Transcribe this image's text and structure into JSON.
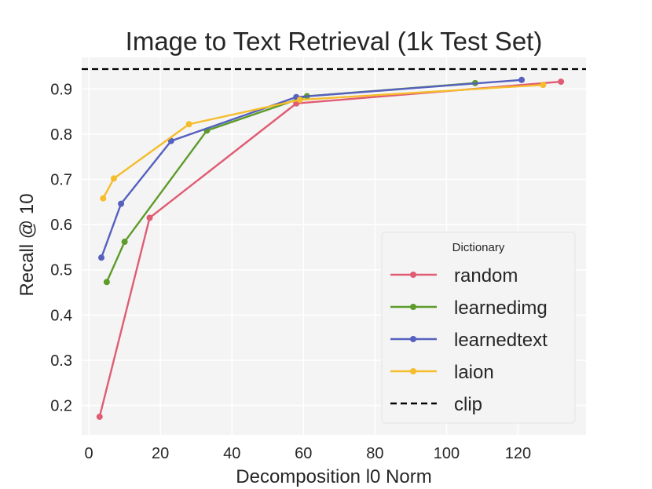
{
  "chart_data": {
    "type": "line",
    "title": "Image to Text Retrieval (1k Test Set)",
    "xlabel": "Decomposition l0 Norm",
    "ylabel": "Recall @ 10",
    "xlim": [
      -2,
      139
    ],
    "ylim": [
      0.135,
      0.97
    ],
    "xticks": [
      0,
      20,
      40,
      60,
      80,
      100,
      120
    ],
    "yticks": [
      0.2,
      0.3,
      0.4,
      0.5,
      0.6,
      0.7,
      0.8,
      0.9
    ],
    "grid": true,
    "legend": {
      "title": "Dictionary",
      "placement": "lower-right"
    },
    "series": [
      {
        "name": "random",
        "color": "#e05c73",
        "x": [
          3,
          17,
          58,
          132
        ],
        "y": [
          0.175,
          0.615,
          0.868,
          0.916
        ]
      },
      {
        "name": "learnedimg",
        "color": "#5d9b2a",
        "x": [
          5,
          10,
          33,
          61,
          108
        ],
        "y": [
          0.473,
          0.562,
          0.808,
          0.884,
          0.913
        ]
      },
      {
        "name": "learnedtext",
        "color": "#5560bf",
        "x": [
          3.5,
          9,
          23,
          58,
          121
        ],
        "y": [
          0.527,
          0.646,
          0.785,
          0.882,
          0.92
        ]
      },
      {
        "name": "laion",
        "color": "#f5bd2c",
        "x": [
          4,
          7,
          28,
          59,
          127
        ],
        "y": [
          0.658,
          0.702,
          0.822,
          0.876,
          0.909
        ]
      }
    ],
    "reference_lines": [
      {
        "name": "clip",
        "y": 0.944,
        "color": "#000000",
        "style": "dashed"
      }
    ]
  }
}
